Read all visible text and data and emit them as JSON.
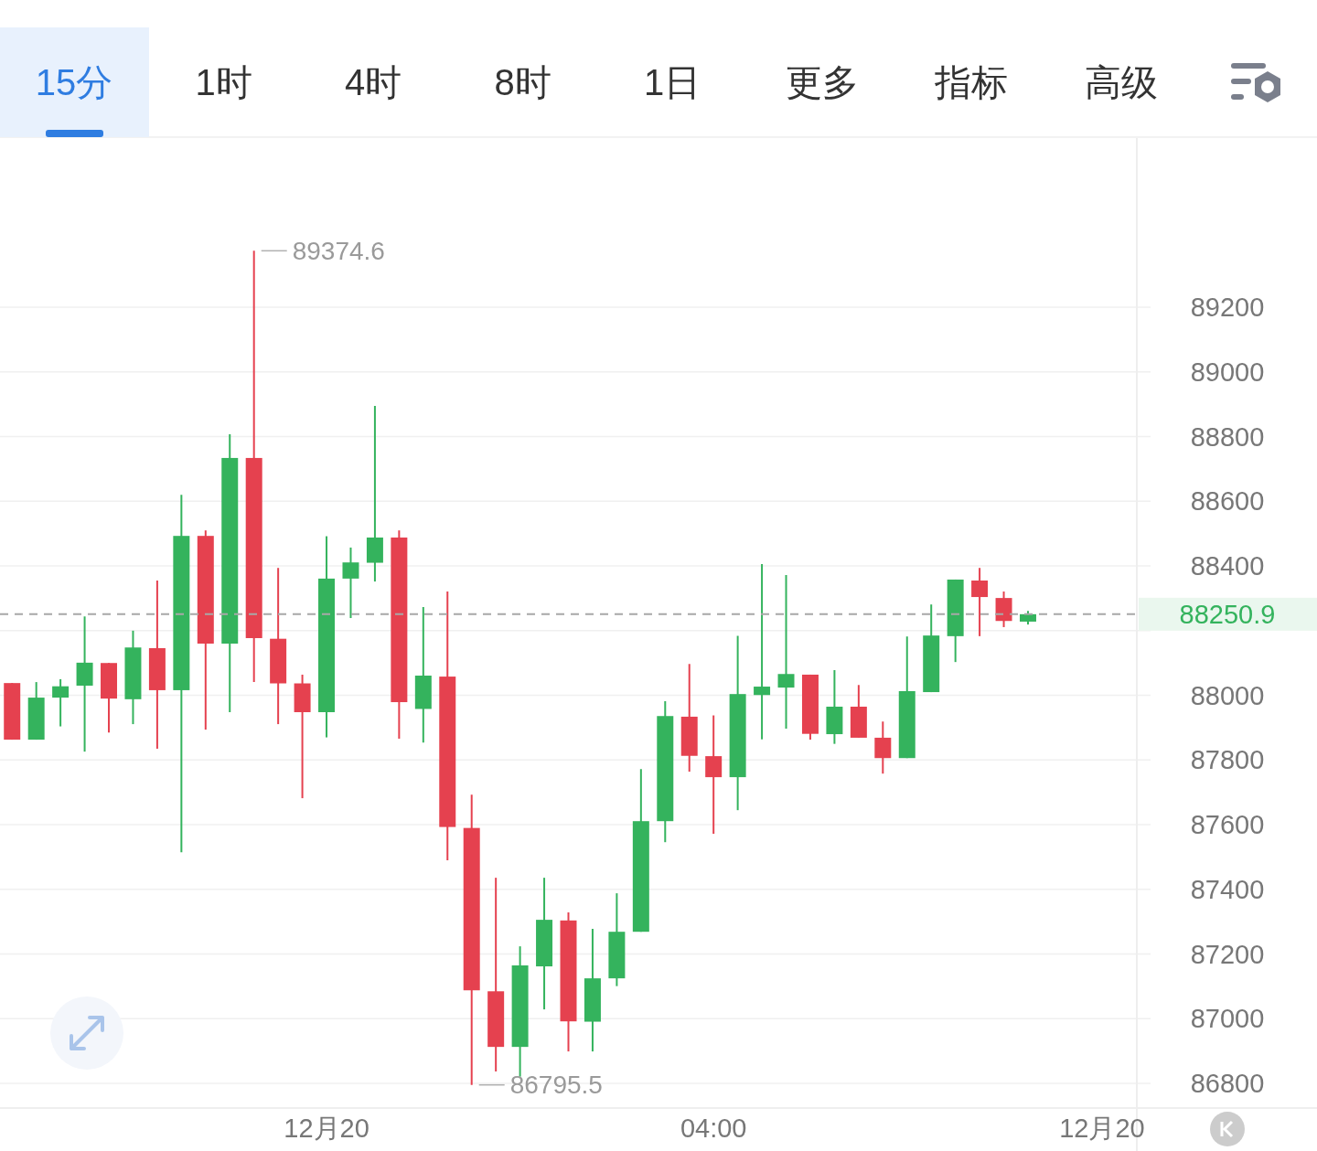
{
  "chart_data": {
    "type": "candlestick",
    "categories": [
      null,
      null,
      null,
      null,
      null,
      null,
      null,
      null,
      null,
      null,
      null,
      null,
      null,
      "12月20",
      null,
      null,
      null,
      null,
      null,
      null,
      null,
      null,
      null,
      null,
      null,
      null,
      null,
      null,
      null,
      "04:00",
      null,
      null,
      null,
      null,
      null,
      null,
      null,
      null,
      null,
      null,
      null,
      null,
      null,
      null,
      null,
      null,
      null
    ],
    "ohlc": [
      [
        88038,
        88038,
        87863,
        87863
      ],
      [
        87863,
        88041,
        87863,
        87993
      ],
      [
        87993,
        88050,
        87904,
        88028
      ],
      [
        88030,
        88244,
        87826,
        88101
      ],
      [
        88100,
        88100,
        87885,
        87990
      ],
      [
        87988,
        88200,
        87911,
        88148
      ],
      [
        88146,
        88355,
        87835,
        88016
      ],
      [
        88016,
        88620,
        87515,
        88493
      ],
      [
        88493,
        88510,
        87894,
        88160
      ],
      [
        88160,
        88807,
        87948,
        88734
      ],
      [
        88734,
        89374.6,
        88041,
        88177
      ],
      [
        88175,
        88394,
        87911,
        88037
      ],
      [
        88037,
        88064,
        87682,
        87948
      ],
      [
        87948,
        88492,
        87870,
        88361
      ],
      [
        88361,
        88457,
        88239,
        88411
      ],
      [
        88410,
        88895,
        88352,
        88488
      ],
      [
        88488,
        88510,
        87866,
        87979
      ],
      [
        87958,
        88273,
        87854,
        88061
      ],
      [
        88058,
        88321,
        87490,
        87593
      ],
      [
        87590,
        87693,
        86795.5,
        87088
      ],
      [
        87085,
        87436,
        86837,
        86913
      ],
      [
        86913,
        87224,
        86821,
        87165
      ],
      [
        87162,
        87436,
        87029,
        87306
      ],
      [
        87304,
        87329,
        86899,
        86992
      ],
      [
        86991,
        87278,
        86899,
        87125
      ],
      [
        87125,
        87388,
        87101,
        87269
      ],
      [
        87269,
        87772,
        87269,
        87611
      ],
      [
        87611,
        87982,
        87546,
        87936
      ],
      [
        87934,
        88097,
        87764,
        87813
      ],
      [
        87812,
        87938,
        87572,
        87747
      ],
      [
        87747,
        88184,
        87645,
        88004
      ],
      [
        88001,
        88406,
        87864,
        88027
      ],
      [
        88024,
        88372,
        87897,
        88066
      ],
      [
        88064,
        88064,
        87863,
        87881
      ],
      [
        87880,
        88078,
        87850,
        87965
      ],
      [
        87965,
        88032,
        87869,
        87869
      ],
      [
        87869,
        87919,
        87758,
        87806
      ],
      [
        87806,
        88182,
        87806,
        88013
      ],
      [
        88010,
        88281,
        88010,
        88185
      ],
      [
        88183,
        88358,
        88103,
        88358
      ],
      [
        88355,
        88394,
        88183,
        88304
      ],
      [
        88301,
        88321,
        88211,
        88230
      ],
      [
        88228,
        88261,
        88219,
        88250.9
      ],
      null,
      null,
      null,
      null
    ],
    "colors": [
      "#e5414f",
      "#34b35d",
      "#34b35d",
      "#34b35d",
      "#e5414f",
      "#34b35d",
      "#e5414f",
      "#34b35d",
      "#e5414f",
      "#34b35d",
      "#e5414f",
      "#e5414f",
      "#e5414f",
      "#34b35d",
      "#34b35d",
      "#34b35d",
      "#e5414f",
      "#34b35d",
      "#e5414f",
      "#e5414f",
      "#e5414f",
      "#34b35d",
      "#34b35d",
      "#e5414f",
      "#34b35d",
      "#34b35d",
      "#34b35d",
      "#34b35d",
      "#e5414f",
      "#e5414f",
      "#34b35d",
      "#34b35d",
      "#34b35d",
      "#e5414f",
      "#34b35d",
      "#e5414f",
      "#e5414f",
      "#34b35d",
      "#34b35d",
      "#34b35d",
      "#e5414f",
      "#e5414f",
      "#34b35d",
      null,
      null,
      null,
      null
    ],
    "ylim": [
      86724,
      89726
    ],
    "yticks": [
      89200,
      89000,
      88800,
      88600,
      88400,
      {
        "value": 88200,
        "label": null
      },
      88000,
      87800,
      87600,
      87400,
      87200,
      87000,
      86800
    ],
    "grid": "y",
    "ref_lines": [
      {
        "axis": "y",
        "value": 88250.9,
        "label": "88250.9",
        "color": "#a8a8a8",
        "line_style": "dashed"
      }
    ],
    "annotations": [
      "15分",
      "1时",
      "4时",
      "8时",
      "1日",
      "更多",
      "指标",
      "高级",
      "89374.6",
      "86795.5",
      "12月20"
    ]
  }
}
